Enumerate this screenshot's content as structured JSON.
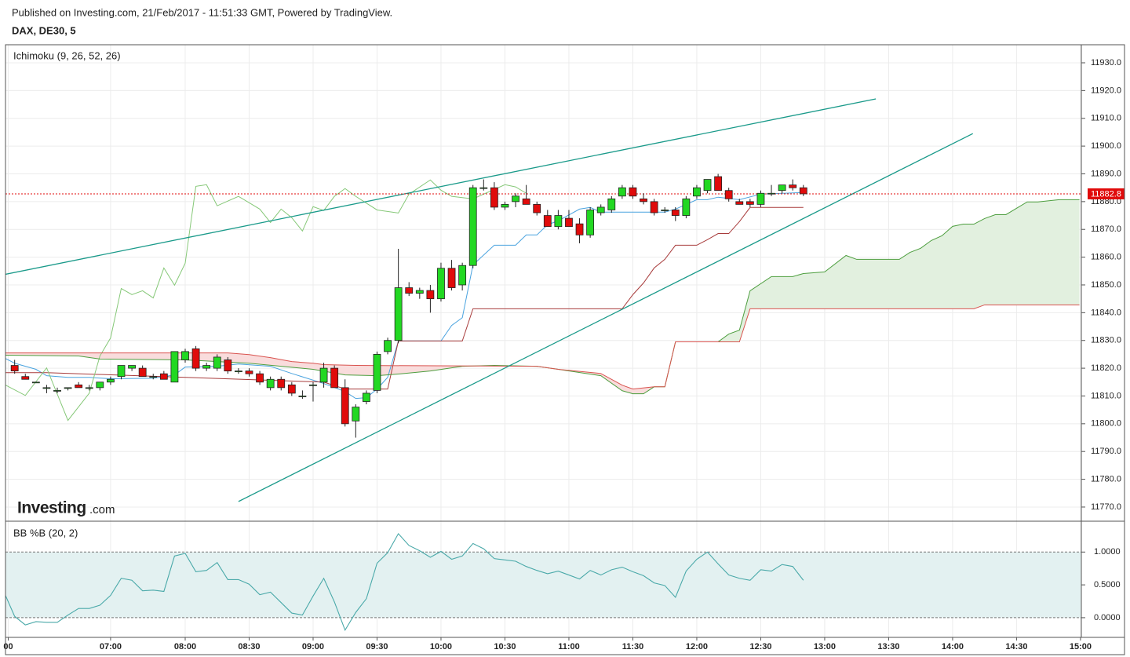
{
  "header": {
    "published": "Published on Investing.com, 21/Feb/2017 - 11:51:33 GMT, Powered by TradingView."
  },
  "chart_data": [
    {
      "type": "candlestick",
      "title": "DAX, DE30, 5",
      "indicator": "Ichimoku (9, 26, 52, 26)",
      "logo": {
        "brand": "Investing",
        "suffix": ".com"
      },
      "x": [
        0,
        1,
        2,
        3,
        4,
        5,
        6,
        7,
        8,
        9,
        10,
        11,
        12,
        13,
        14,
        15,
        16,
        17,
        18,
        19,
        20,
        21,
        22,
        23,
        24,
        25,
        26,
        27,
        28,
        29,
        30,
        31,
        32,
        33,
        34,
        35,
        36,
        37,
        38,
        39,
        40,
        41,
        42,
        43,
        44,
        45,
        46,
        47,
        48,
        49,
        50,
        51,
        52,
        53,
        54,
        55,
        56,
        57,
        58,
        59,
        60,
        61,
        62,
        63,
        64,
        65,
        66,
        67,
        68,
        69,
        70,
        71,
        72,
        73,
        74
      ],
      "open": [
        11821,
        11817,
        11815,
        11813,
        11812,
        11813,
        11814,
        11813,
        11813,
        11815,
        11817,
        11820,
        11820,
        11817,
        11818,
        11815,
        11823,
        11827,
        11820,
        11820,
        11823,
        11819,
        11819,
        11818,
        11813,
        11816,
        11814,
        11810,
        11814,
        11815,
        11820,
        11813,
        11801,
        11808,
        11812,
        11826,
        11830,
        11849,
        11847,
        11848,
        11845,
        11856,
        11850,
        11857,
        11885,
        11885,
        11878,
        11880,
        11881,
        11879,
        11875,
        11871,
        11874,
        11872,
        11868,
        11876,
        11877,
        11882,
        11885,
        11881,
        11880,
        11877,
        11877,
        11875,
        11882,
        11884,
        11889,
        11884,
        11880,
        11880,
        11879,
        11883,
        11884,
        11886,
        11885
      ],
      "high": [
        11823,
        11818,
        11815,
        11814,
        11813,
        11813,
        11815,
        11814,
        11815,
        11817,
        11821,
        11821,
        11821,
        11818,
        11819,
        11826,
        11827,
        11828,
        11822,
        11825,
        11824,
        11820,
        11820,
        11819,
        11817,
        11817,
        11815,
        11812,
        11815,
        11822,
        11821,
        11816,
        11807,
        11812,
        11826,
        11831,
        11863,
        11851,
        11849,
        11850,
        11858,
        11859,
        11858,
        11886,
        11888,
        11887,
        11880,
        11883,
        11886,
        11880,
        11877,
        11877,
        11877,
        11874,
        11878,
        11879,
        11882,
        11886,
        11886,
        11883,
        11881,
        11878,
        11878,
        11882,
        11886,
        11888,
        11890,
        11885,
        11881,
        11881,
        11884,
        11886,
        11886,
        11888,
        11886
      ],
      "low": [
        11818,
        11816,
        11815,
        11811,
        11811,
        11812,
        11813,
        11812,
        11812,
        11814,
        11816,
        11819,
        11817,
        11816,
        11816,
        11815,
        11822,
        11819,
        11819,
        11819,
        11818,
        11818,
        11817,
        11814,
        11812,
        11812,
        11810,
        11809,
        11808,
        11813,
        11813,
        11799,
        11795,
        11807,
        11811,
        11825,
        11829,
        11846,
        11845,
        11840,
        11844,
        11848,
        11848,
        11856,
        11884,
        11877,
        11877,
        11878,
        11879,
        11875,
        11871,
        11870,
        11871,
        11865,
        11867,
        11875,
        11876,
        11881,
        11881,
        11879,
        11875,
        11876,
        11873,
        11874,
        11881,
        11883,
        11884,
        11880,
        11879,
        11878,
        11878,
        11882,
        11883,
        11884,
        11882
      ],
      "close": [
        11819,
        11816,
        11815,
        11813,
        11812,
        11813,
        11813,
        11813,
        11815,
        11816,
        11821,
        11821,
        11817,
        11817,
        11816,
        11826,
        11826,
        11820,
        11821,
        11824,
        11819,
        11819,
        11818,
        11815,
        11816,
        11813,
        11811,
        11810,
        11814,
        11820,
        11813,
        11800,
        11806,
        11811,
        11825,
        11830,
        11849,
        11847,
        11848,
        11845,
        11856,
        11849,
        11857,
        11885,
        11885,
        11878,
        11879,
        11882,
        11879,
        11876,
        11871,
        11875,
        11871,
        11868,
        11877,
        11878,
        11881,
        11885,
        11882,
        11880,
        11876,
        11877,
        11875,
        11881,
        11885,
        11888,
        11884,
        11881,
        11879,
        11879,
        11883,
        11883,
        11886,
        11885,
        11882.8
      ],
      "up_color": "#22d822",
      "down_color": "#e00b0b",
      "border_color": "#222222",
      "lines": [
        {
          "color": "#4aa3df",
          "x": [
            -1,
            0,
            2,
            3,
            5,
            7,
            9,
            13,
            15,
            16,
            19,
            21,
            24,
            26,
            29,
            31,
            32,
            33,
            34,
            35,
            36,
            40,
            41,
            42,
            43,
            45,
            47,
            48,
            49,
            50,
            51,
            53,
            54,
            55,
            61,
            62,
            64,
            65,
            66,
            68,
            70,
            74
          ],
          "values": [
            11823.8,
            11821.8,
            11819.6,
            11817.3,
            11816.7,
            11816.7,
            11816.2,
            11816.4,
            11817.6,
            11820.4,
            11820.7,
            11821.5,
            11820.7,
            11818.1,
            11814.5,
            11811.6,
            11809.1,
            11809.4,
            11812.5,
            11816.7,
            11829.8,
            11829.8,
            11835.4,
            11838.2,
            11857.2,
            11864.3,
            11864.3,
            11868,
            11868,
            11871.7,
            11873.1,
            11877.3,
            11877.9,
            11876.2,
            11876.2,
            11877.3,
            11880.7,
            11880.7,
            11881.6,
            11880.7,
            11882.7,
            11883.3
          ]
        },
        {
          "color": "#a83c3c",
          "x": [
            -1,
            3,
            29,
            31,
            35,
            36,
            42,
            43,
            44,
            57,
            58,
            59,
            60,
            61,
            62,
            64,
            65,
            66,
            67,
            68,
            69,
            74
          ],
          "values": [
            11818.4,
            11818.4,
            11815,
            11812.5,
            11812.5,
            11829.8,
            11829.8,
            11841.4,
            11841.4,
            11841.4,
            11846.5,
            11850.7,
            11856.1,
            11859.2,
            11864.3,
            11864.3,
            11866.3,
            11868.5,
            11868.5,
            11872.8,
            11877.9,
            11877.9
          ]
        },
        {
          "color": "#86c878",
          "x": [
            -1,
            1,
            3,
            5,
            7,
            8,
            9,
            10,
            11,
            12,
            13,
            14,
            15,
            16,
            17,
            18,
            19,
            21,
            23,
            24,
            25,
            26,
            27,
            28,
            29,
            30,
            31,
            32,
            34,
            36,
            37,
            39,
            40,
            41,
            43,
            46,
            47,
            48
          ],
          "values": [
            11814.2,
            11810.2,
            11820.1,
            11801.2,
            11811,
            11824.4,
            11830.9,
            11848.7,
            11846.5,
            11847.9,
            11845.3,
            11856.1,
            11849.9,
            11857.8,
            11885.5,
            11886.1,
            11878.5,
            11881.9,
            11877.3,
            11872.5,
            11877.3,
            11874.2,
            11869.4,
            11878.2,
            11876.8,
            11881.9,
            11884.7,
            11881.9,
            11877,
            11875.9,
            11882.7,
            11887.8,
            11884.1,
            11881.9,
            11881,
            11886.1,
            11885.3,
            11883
          ]
        },
        {
          "color": "#4d9e3f",
          "x": [
            -1,
            6,
            8,
            16,
            19,
            22,
            28,
            31,
            34,
            36,
            39,
            42,
            45,
            49,
            51,
            55,
            57,
            58,
            59,
            60,
            61,
            62,
            66,
            67,
            68,
            69,
            71,
            73,
            74,
            76,
            78,
            79,
            83,
            84,
            85,
            86,
            87,
            88,
            89,
            90,
            91,
            92,
            93,
            95,
            96,
            98,
            99.9
          ],
          "values": [
            11824.7,
            11824.4,
            11823.3,
            11823,
            11822.4,
            11821.8,
            11819.6,
            11817.6,
            11817.3,
            11817.9,
            11819,
            11820.7,
            11821,
            11820.7,
            11819.6,
            11817.3,
            11811.9,
            11810.8,
            11810.8,
            11813.3,
            11813.3,
            11829.5,
            11829.5,
            11832.3,
            11833.7,
            11847.9,
            11853,
            11853,
            11854.1,
            11854.7,
            11860.6,
            11859.2,
            11859.2,
            11861.7,
            11863.2,
            11866,
            11867.7,
            11871.1,
            11871.9,
            11871.9,
            11873.9,
            11875.3,
            11875.3,
            11879.9,
            11879.9,
            11880.7,
            11880.7
          ]
        },
        {
          "color": "#d9534f",
          "x": [
            -1,
            20,
            22,
            24,
            26,
            28,
            29,
            32,
            49,
            51,
            55,
            57,
            58,
            60,
            61,
            62,
            68,
            69,
            90,
            91,
            99.9
          ],
          "values": [
            11825.5,
            11825.5,
            11824.9,
            11823.8,
            11822.4,
            11821.8,
            11821.3,
            11821,
            11820.7,
            11819.6,
            11818.1,
            11813.9,
            11812.5,
            11813.3,
            11813.3,
            11829.5,
            11829.5,
            11841.4,
            11841.4,
            11842.8,
            11842.8
          ]
        }
      ],
      "cloud": {
        "upper_line": 3,
        "lower_line": 4,
        "up_color": "#e2f0df",
        "down_color": "#f9dcdc"
      },
      "trendline_color": "#1a9a8a",
      "trendlines": [
        {
          "x": [
            -0.9,
            80.8
          ],
          "values": [
            11853.8,
            11917.0
          ]
        },
        {
          "x": [
            21.0,
            89.9
          ],
          "values": [
            11772,
            11904.5
          ]
        }
      ],
      "last_price": 11882.8,
      "last_price_color": "#e00b0b",
      "xlim": [
        -0.86,
        100.08
      ],
      "ylim": [
        11764.9,
        11936.5
      ],
      "yticks": [
        {
          "value": 11770,
          "label": "11770.0"
        },
        {
          "value": 11780,
          "label": "11780.0"
        },
        {
          "value": 11790,
          "label": "11790.0"
        },
        {
          "value": 11800,
          "label": "11800.0"
        },
        {
          "value": 11810,
          "label": "11810.0"
        },
        {
          "value": 11820,
          "label": "11820.0"
        },
        {
          "value": 11830,
          "label": "11830.0"
        },
        {
          "value": 11840,
          "label": "11840.0"
        },
        {
          "value": 11850,
          "label": "11850.0"
        },
        {
          "value": 11860,
          "label": "11860.0"
        },
        {
          "value": 11870,
          "label": "11870.0"
        },
        {
          "value": 11880,
          "label": "11880.0"
        },
        {
          "value": 11890,
          "label": "11890.0"
        },
        {
          "value": 11900,
          "label": "11900.0"
        },
        {
          "value": 11910,
          "label": "11910.0"
        },
        {
          "value": 11920,
          "label": "11920.0"
        },
        {
          "value": 11930,
          "label": "11930.0"
        }
      ],
      "grid": true
    },
    {
      "type": "line",
      "indicator": "BB %B (20, 2)",
      "color": "#4aa9a9",
      "x": [
        -1,
        0,
        1,
        2,
        3,
        4,
        5,
        6,
        7,
        8,
        9,
        10,
        11,
        12,
        13,
        14,
        15,
        16,
        17,
        18,
        19,
        20,
        21,
        22,
        23,
        24,
        25,
        26,
        27,
        28,
        29,
        30,
        31,
        32,
        33,
        34,
        35,
        36,
        37,
        38,
        39,
        40,
        41,
        42,
        43,
        44,
        45,
        46,
        47,
        48,
        49,
        50,
        51,
        52,
        53,
        54,
        55,
        56,
        57,
        58,
        59,
        60,
        61,
        62,
        63,
        64,
        65,
        66,
        67,
        68,
        69,
        70,
        71,
        72,
        73,
        74
      ],
      "values": [
        0.39,
        0.02,
        -0.11,
        -0.06,
        -0.07,
        -0.07,
        0.04,
        0.14,
        0.14,
        0.19,
        0.34,
        0.6,
        0.57,
        0.41,
        0.42,
        0.4,
        0.94,
        0.98,
        0.7,
        0.72,
        0.84,
        0.58,
        0.58,
        0.51,
        0.35,
        0.39,
        0.23,
        0.07,
        0.04,
        0.33,
        0.6,
        0.24,
        -0.19,
        0.08,
        0.29,
        0.83,
        0.99,
        1.28,
        1.1,
        1.02,
        0.92,
        1.01,
        0.89,
        0.94,
        1.13,
        1.05,
        0.9,
        0.88,
        0.86,
        0.78,
        0.72,
        0.67,
        0.71,
        0.65,
        0.59,
        0.72,
        0.65,
        0.73,
        0.77,
        0.7,
        0.64,
        0.53,
        0.49,
        0.31,
        0.71,
        0.89,
        1.0,
        0.82,
        0.65,
        0.6,
        0.57,
        0.73,
        0.71,
        0.81,
        0.78,
        0.57
      ],
      "band": {
        "lower": 0,
        "upper": 1,
        "color": "#e3f1f1"
      },
      "xlim": [
        -0.86,
        100.08
      ],
      "ylim": [
        -0.3,
        1.47
      ],
      "yticks": [
        {
          "value": 0,
          "label": "0.0000"
        },
        {
          "value": 0.5,
          "label": "0.5000"
        },
        {
          "value": 1,
          "label": "1.0000"
        }
      ],
      "xticks": [
        {
          "value": -0.6,
          "label": "00"
        },
        {
          "value": 9,
          "label": "07:00"
        },
        {
          "value": 16,
          "label": "08:00"
        },
        {
          "value": 22,
          "label": "08:30"
        },
        {
          "value": 28,
          "label": "09:00"
        },
        {
          "value": 34,
          "label": "09:30"
        },
        {
          "value": 40,
          "label": "10:00"
        },
        {
          "value": 46,
          "label": "10:30"
        },
        {
          "value": 52,
          "label": "11:00"
        },
        {
          "value": 58,
          "label": "11:30"
        },
        {
          "value": 64,
          "label": "12:00"
        },
        {
          "value": 70,
          "label": "12:30"
        },
        {
          "value": 76,
          "label": "13:00"
        },
        {
          "value": 82,
          "label": "13:30"
        },
        {
          "value": 88,
          "label": "14:00"
        },
        {
          "value": 94,
          "label": "14:30"
        },
        {
          "value": 100,
          "label": "15:00"
        }
      ],
      "grid": true
    }
  ]
}
